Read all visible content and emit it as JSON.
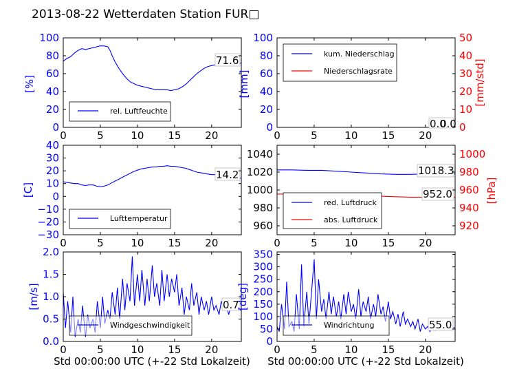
{
  "title": "2013-08-22 Wetterdaten Station FUR□",
  "colors": {
    "primary": "#0000ff",
    "secondary": "#ff0000",
    "axis": "#000000"
  },
  "chart_data": [
    {
      "id": "humidity",
      "type": "line",
      "xlim": [
        0,
        24
      ],
      "ylim": [
        0,
        100
      ],
      "xticks": [
        "0",
        "5",
        "10",
        "15",
        "20"
      ],
      "yticks": [
        "0",
        "20",
        "40",
        "60",
        "80",
        "100"
      ],
      "ylabel": "[%]",
      "legend": {
        "placement": "lower-left",
        "entries": [
          {
            "label": "rel. Luftfeuchte",
            "color": "#0000ff"
          }
        ]
      },
      "last_value": "71.6",
      "series": [
        {
          "name": "rel. Luftfeuchte",
          "color": "#0000ff",
          "x": [
            0,
            0.5,
            1,
            1.5,
            2,
            2.5,
            3,
            3.5,
            4,
            4.5,
            5,
            5.5,
            6,
            6.3,
            6.6,
            7,
            7.5,
            8,
            8.5,
            9,
            9.5,
            10,
            10.5,
            11,
            11.5,
            12,
            12.5,
            13,
            13.5,
            14,
            14.5,
            15,
            15.5,
            16,
            16.5,
            17,
            17.5,
            18,
            18.5,
            19,
            19.5,
            20,
            20.5,
            21,
            21.5,
            22,
            22.5,
            23,
            23.5,
            24
          ],
          "y": [
            74,
            77,
            79,
            83,
            86,
            88,
            87,
            88,
            89,
            90,
            91,
            91,
            90,
            86,
            80,
            73,
            66,
            60,
            55,
            51,
            49,
            47,
            46,
            45,
            44,
            43,
            42,
            42,
            42,
            42,
            41,
            42,
            43,
            45,
            48,
            52,
            56,
            60,
            63,
            66,
            68,
            69,
            70,
            70,
            71,
            70,
            71,
            71,
            72,
            71.6
          ]
        }
      ]
    },
    {
      "id": "precipitation",
      "type": "line",
      "xlim": [
        0,
        24
      ],
      "ylim": [
        0,
        100
      ],
      "y2lim": [
        0,
        50
      ],
      "xticks": [
        "0",
        "5",
        "10",
        "15",
        "20"
      ],
      "yticks": [
        "0",
        "20",
        "40",
        "60",
        "80",
        "100"
      ],
      "y2ticks": [
        "0",
        "10",
        "20",
        "30",
        "40",
        "50"
      ],
      "ylabel": "[mm]",
      "y2label": "[mm/std]",
      "legend": {
        "placement": "upper-left",
        "entries": [
          {
            "label": "kum. Niederschlag",
            "color": "#0000ff"
          },
          {
            "label": "Niederschlagsrate",
            "color": "#ff0000"
          }
        ]
      },
      "last_value": "0.0",
      "last_value_2": "0.0",
      "series": [
        {
          "name": "kum. Niederschlag",
          "color": "#0000ff",
          "axis": "left",
          "x": [
            0,
            24
          ],
          "y": [
            0,
            0
          ]
        },
        {
          "name": "Niederschlagsrate",
          "color": "#ff0000",
          "axis": "right",
          "x": [
            0,
            24
          ],
          "y": [
            0,
            0
          ]
        }
      ]
    },
    {
      "id": "temperature",
      "type": "line",
      "xlim": [
        0,
        24
      ],
      "ylim": [
        -30,
        40
      ],
      "xticks": [
        "0",
        "5",
        "10",
        "15",
        "20"
      ],
      "yticks": [
        "−30",
        "−20",
        "−10",
        "0",
        "10",
        "20",
        "30",
        "40"
      ],
      "ylabel": "[C]",
      "legend": {
        "placement": "lower-left",
        "entries": [
          {
            "label": "Lufttemperatur",
            "color": "#0000ff"
          }
        ]
      },
      "last_value": "14.2",
      "series": [
        {
          "name": "Lufttemperatur",
          "color": "#0000ff",
          "x": [
            0,
            0.5,
            1,
            1.5,
            2,
            2.5,
            3,
            3.5,
            4,
            4.5,
            5,
            5.5,
            6,
            6.5,
            7,
            7.5,
            8,
            8.5,
            9,
            9.5,
            10,
            10.5,
            11,
            11.5,
            12,
            12.5,
            13,
            13.5,
            14,
            14.5,
            15,
            15.5,
            16,
            16.5,
            17,
            17.5,
            18,
            18.5,
            19,
            19.5,
            20,
            20.5,
            21,
            21.5,
            22,
            22.5,
            23,
            23.5,
            24
          ],
          "y": [
            11.5,
            11,
            10.5,
            10,
            10,
            9,
            8.5,
            9,
            9,
            8,
            7.5,
            8,
            9,
            10.5,
            12,
            13.5,
            15,
            16.5,
            18,
            19.5,
            20.5,
            21.5,
            22,
            22.5,
            23,
            23,
            23.5,
            23.5,
            24,
            23.5,
            23.5,
            23,
            22.5,
            22,
            21,
            20,
            19,
            18.5,
            18,
            17.5,
            17,
            17,
            16.5,
            16,
            15.5,
            15,
            14.8,
            14.5,
            14.2
          ]
        }
      ]
    },
    {
      "id": "pressure",
      "type": "line",
      "xlim": [
        0,
        24
      ],
      "ylim": [
        950,
        1050
      ],
      "y2lim": [
        910,
        1010
      ],
      "xticks": [
        "0",
        "5",
        "10",
        "15",
        "20"
      ],
      "yticks": [
        "960",
        "980",
        "1000",
        "1020",
        "1040"
      ],
      "y2ticks": [
        "920",
        "940",
        "960",
        "980",
        "1000"
      ],
      "y2label": "[hPa]",
      "legend": {
        "placement": "lower-left",
        "entries": [
          {
            "label": "red. Luftdruck",
            "color": "#0000ff"
          },
          {
            "label": "abs. Luftdruck",
            "color": "#ff0000"
          }
        ]
      },
      "last_value": "1018.3",
      "last_value_2": "952.0",
      "series": [
        {
          "name": "red. Luftdruck",
          "color": "#0000ff",
          "axis": "left",
          "x": [
            0,
            2,
            4,
            6,
            8,
            10,
            12,
            14,
            16,
            18,
            20,
            22,
            24
          ],
          "y": [
            1022.5,
            1022.5,
            1022,
            1022,
            1021,
            1020,
            1019,
            1018,
            1017.5,
            1017.5,
            1018,
            1018,
            1018.3
          ]
        },
        {
          "name": "abs. Luftdruck",
          "color": "#ff0000",
          "axis": "right",
          "x": [
            0,
            2,
            4,
            6,
            8,
            10,
            12,
            14,
            16,
            18,
            20,
            22,
            24
          ],
          "y": [
            955.5,
            955.5,
            955,
            955,
            954.5,
            954,
            953.5,
            953,
            952.5,
            952,
            952,
            952,
            952.0
          ]
        }
      ]
    },
    {
      "id": "wind-speed",
      "type": "line",
      "xlim": [
        0,
        24
      ],
      "ylim": [
        0,
        2.0
      ],
      "xticks": [
        "0",
        "5",
        "10",
        "15",
        "20"
      ],
      "yticks": [
        "0.0",
        "0.5",
        "1.0",
        "1.5",
        "2.0"
      ],
      "ylabel": "[m/s]",
      "xlabel": "Std 00:00:00 UTC (+-22 Std Lokalzeit)",
      "legend": {
        "placement": "lower-center",
        "entries": [
          {
            "label": "Windgeschwindigkeit",
            "color": "#0000ff"
          }
        ]
      },
      "last_value": "0.7",
      "series": [
        {
          "name": "Windgeschwindigkeit",
          "color": "#0000ff",
          "x": [
            0,
            0.3,
            0.6,
            1,
            1.3,
            1.6,
            2,
            2.3,
            2.6,
            3,
            3.3,
            3.6,
            4,
            4.3,
            4.6,
            5,
            5.3,
            5.6,
            6,
            6.3,
            6.6,
            7,
            7.3,
            7.6,
            8,
            8.3,
            8.6,
            9,
            9.3,
            9.6,
            10,
            10.3,
            10.6,
            11,
            11.3,
            11.6,
            12,
            12.3,
            12.6,
            13,
            13.3,
            13.6,
            14,
            14.3,
            14.6,
            15,
            15.3,
            15.6,
            16,
            16.3,
            16.6,
            17,
            17.3,
            17.6,
            18,
            18.3,
            18.6,
            19,
            19.3,
            19.6,
            20,
            20.3,
            20.6,
            21,
            21.3,
            21.6,
            22,
            22.3,
            22.6,
            23,
            23.3,
            23.6,
            24
          ],
          "y": [
            1.1,
            0.3,
            0.9,
            0.2,
            1.0,
            0.1,
            0.5,
            0.2,
            0.8,
            0.1,
            0.6,
            0.3,
            0.5,
            0.2,
            0.9,
            0.3,
            1.0,
            0.4,
            0.7,
            0.5,
            1.1,
            0.6,
            1.2,
            0.5,
            1.4,
            0.7,
            1.3,
            0.9,
            1.9,
            0.8,
            1.5,
            0.9,
            1.6,
            0.8,
            1.4,
            0.9,
            1.7,
            1.0,
            1.3,
            0.8,
            1.6,
            0.9,
            1.5,
            1.0,
            1.4,
            1.1,
            1.5,
            0.8,
            1.2,
            0.6,
            1.0,
            0.7,
            1.3,
            0.8,
            1.1,
            0.6,
            1.0,
            0.7,
            0.9,
            0.6,
            1.0,
            0.7,
            0.8,
            0.6,
            0.9,
            0.7,
            0.8,
            0.6,
            0.8,
            0.7,
            0.75,
            0.7,
            0.7
          ]
        }
      ]
    },
    {
      "id": "wind-direction",
      "type": "line",
      "xlim": [
        0,
        24
      ],
      "ylim": [
        0,
        360
      ],
      "xticks": [
        "0",
        "5",
        "10",
        "15",
        "20"
      ],
      "yticks": [
        "0",
        "50",
        "100",
        "150",
        "200",
        "250",
        "300",
        "350"
      ],
      "ylabel": "[deg]",
      "xlabel": "Std 00:00:00 UTC (+-22 Std Lokalzeit)",
      "legend": {
        "placement": "lower-center",
        "entries": [
          {
            "label": "Windrichtung",
            "color": "#0000ff"
          }
        ]
      },
      "last_value": "55.0",
      "series": [
        {
          "name": "Windrichtung",
          "color": "#0000ff",
          "x": [
            0,
            0.3,
            0.6,
            1,
            1.3,
            1.6,
            2,
            2.3,
            2.6,
            3,
            3.3,
            3.6,
            4,
            4.3,
            4.6,
            5,
            5.3,
            5.6,
            6,
            6.3,
            6.6,
            7,
            7.3,
            7.6,
            8,
            8.3,
            8.6,
            9,
            9.3,
            9.6,
            10,
            10.3,
            10.6,
            11,
            11.3,
            11.6,
            12,
            12.3,
            12.6,
            13,
            13.3,
            13.6,
            14,
            14.3,
            14.6,
            15,
            15.3,
            15.6,
            16,
            16.3,
            16.6,
            17,
            17.3,
            17.6,
            18,
            18.3,
            18.6,
            19,
            19.3,
            19.6,
            20,
            20.3,
            20.6,
            21,
            21.3,
            21.6,
            22,
            22.3,
            22.6,
            23,
            23.3,
            23.6,
            24
          ],
          "y": [
            60,
            40,
            150,
            50,
            240,
            60,
            80,
            40,
            190,
            50,
            310,
            60,
            200,
            70,
            180,
            330,
            90,
            250,
            120,
            170,
            90,
            200,
            110,
            180,
            100,
            160,
            90,
            190,
            110,
            200,
            120,
            150,
            90,
            210,
            100,
            160,
            120,
            180,
            90,
            150,
            100,
            190,
            110,
            140,
            80,
            160,
            90,
            120,
            70,
            110,
            60,
            120,
            70,
            90,
            60,
            80,
            50,
            90,
            40,
            70,
            50,
            60,
            40,
            60,
            45,
            70,
            50,
            60,
            55,
            60,
            50,
            55,
            55
          ]
        }
      ]
    }
  ]
}
